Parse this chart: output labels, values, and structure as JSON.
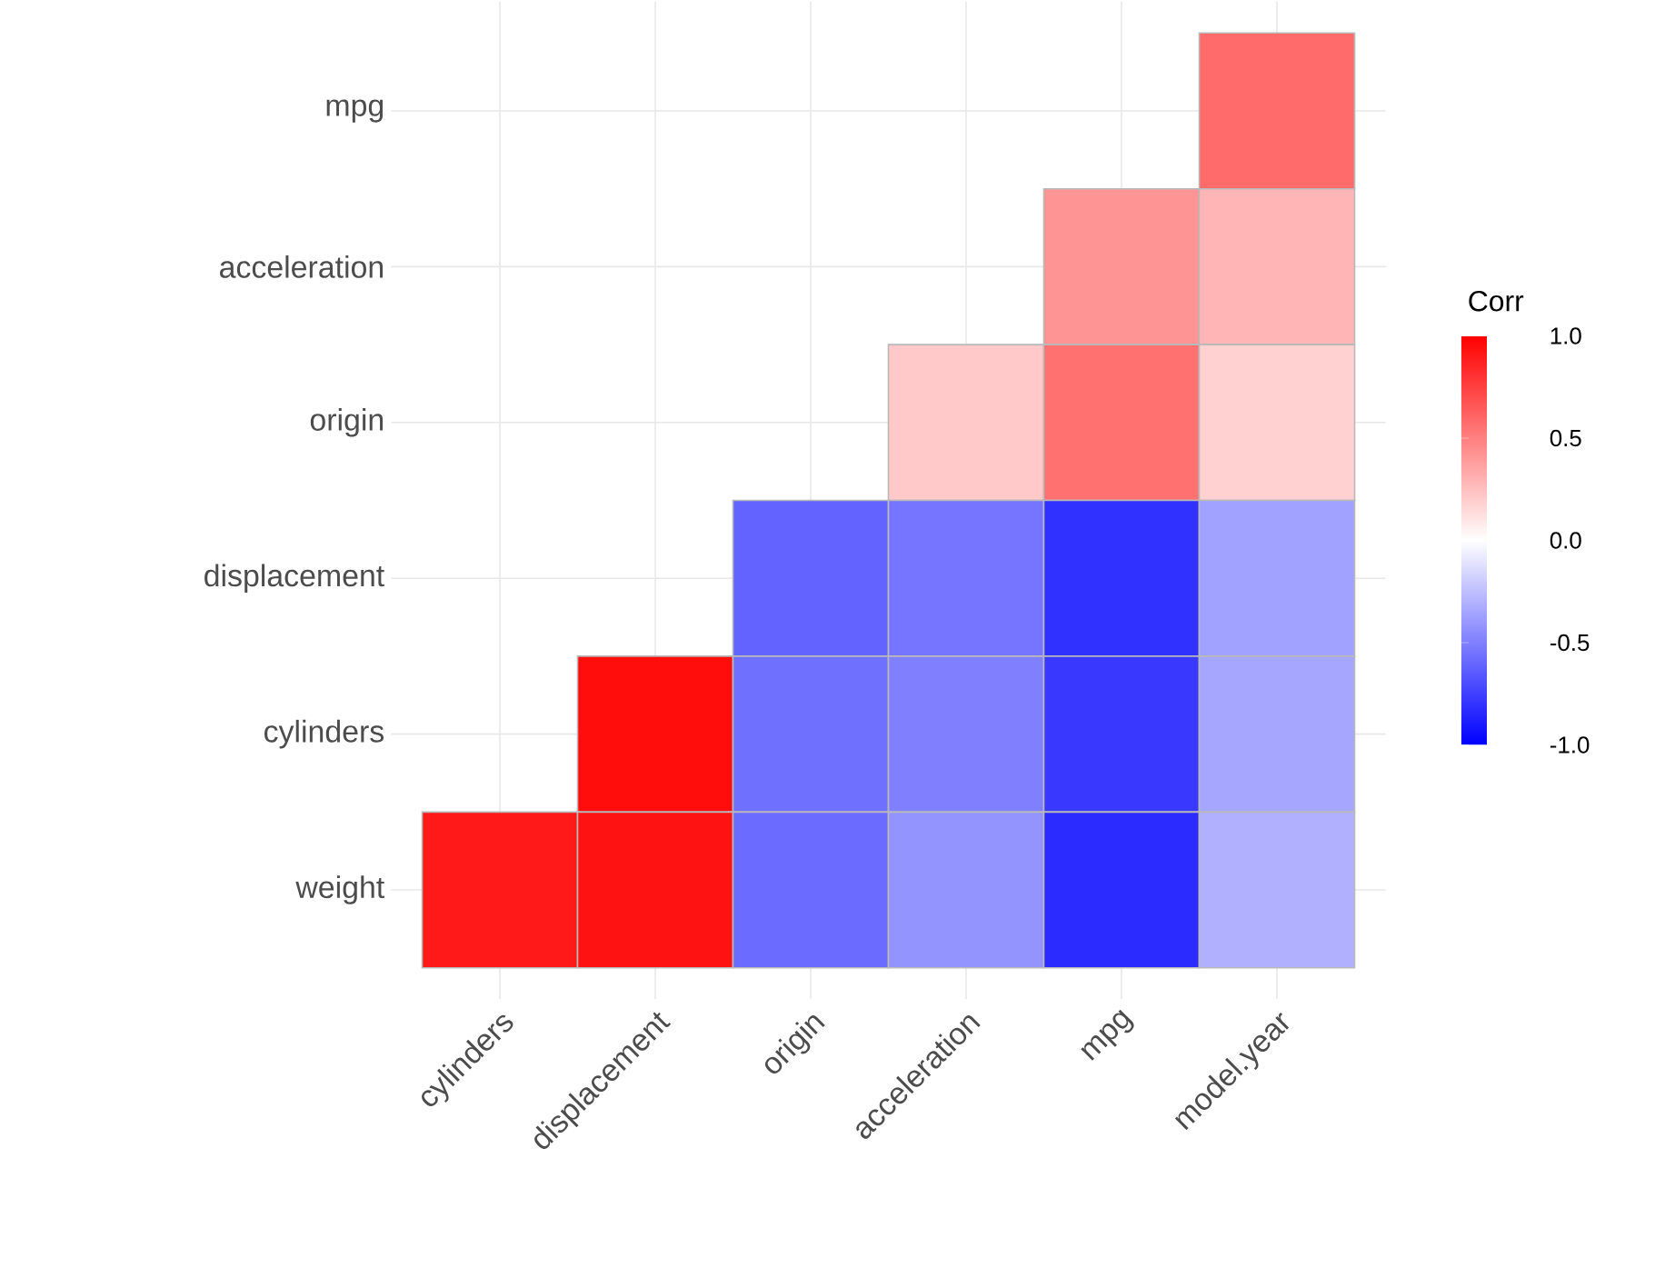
{
  "chart_data": {
    "type": "heatmap",
    "categories": [
      "cylinders",
      "displacement",
      "origin",
      "acceleration",
      "mpg",
      "model.year"
    ],
    "y_categories": [
      "mpg",
      "acceleration",
      "origin",
      "displacement",
      "cylinders",
      "weight"
    ],
    "cells": [
      [
        null,
        null,
        null,
        null,
        null,
        0.58
      ],
      [
        null,
        null,
        null,
        null,
        0.42,
        0.29
      ],
      [
        null,
        null,
        null,
        0.21,
        0.56,
        0.18
      ],
      [
        null,
        null,
        -0.61,
        -0.54,
        -0.81,
        -0.37
      ],
      [
        null,
        0.95,
        -0.56,
        -0.5,
        -0.78,
        -0.35
      ],
      [
        0.9,
        0.93,
        -0.58,
        -0.42,
        -0.83,
        -0.31
      ]
    ],
    "clim": [
      -1,
      1
    ],
    "cticks": [
      {
        "value": -1,
        "label": "-1.0"
      },
      {
        "value": -0.5,
        "label": "-0.5"
      },
      {
        "value": 0,
        "label": "0.0"
      },
      {
        "value": 0.5,
        "label": "0.5"
      },
      {
        "value": 1,
        "label": "1.0"
      }
    ],
    "clabel": "Corr",
    "grid": true
  }
}
